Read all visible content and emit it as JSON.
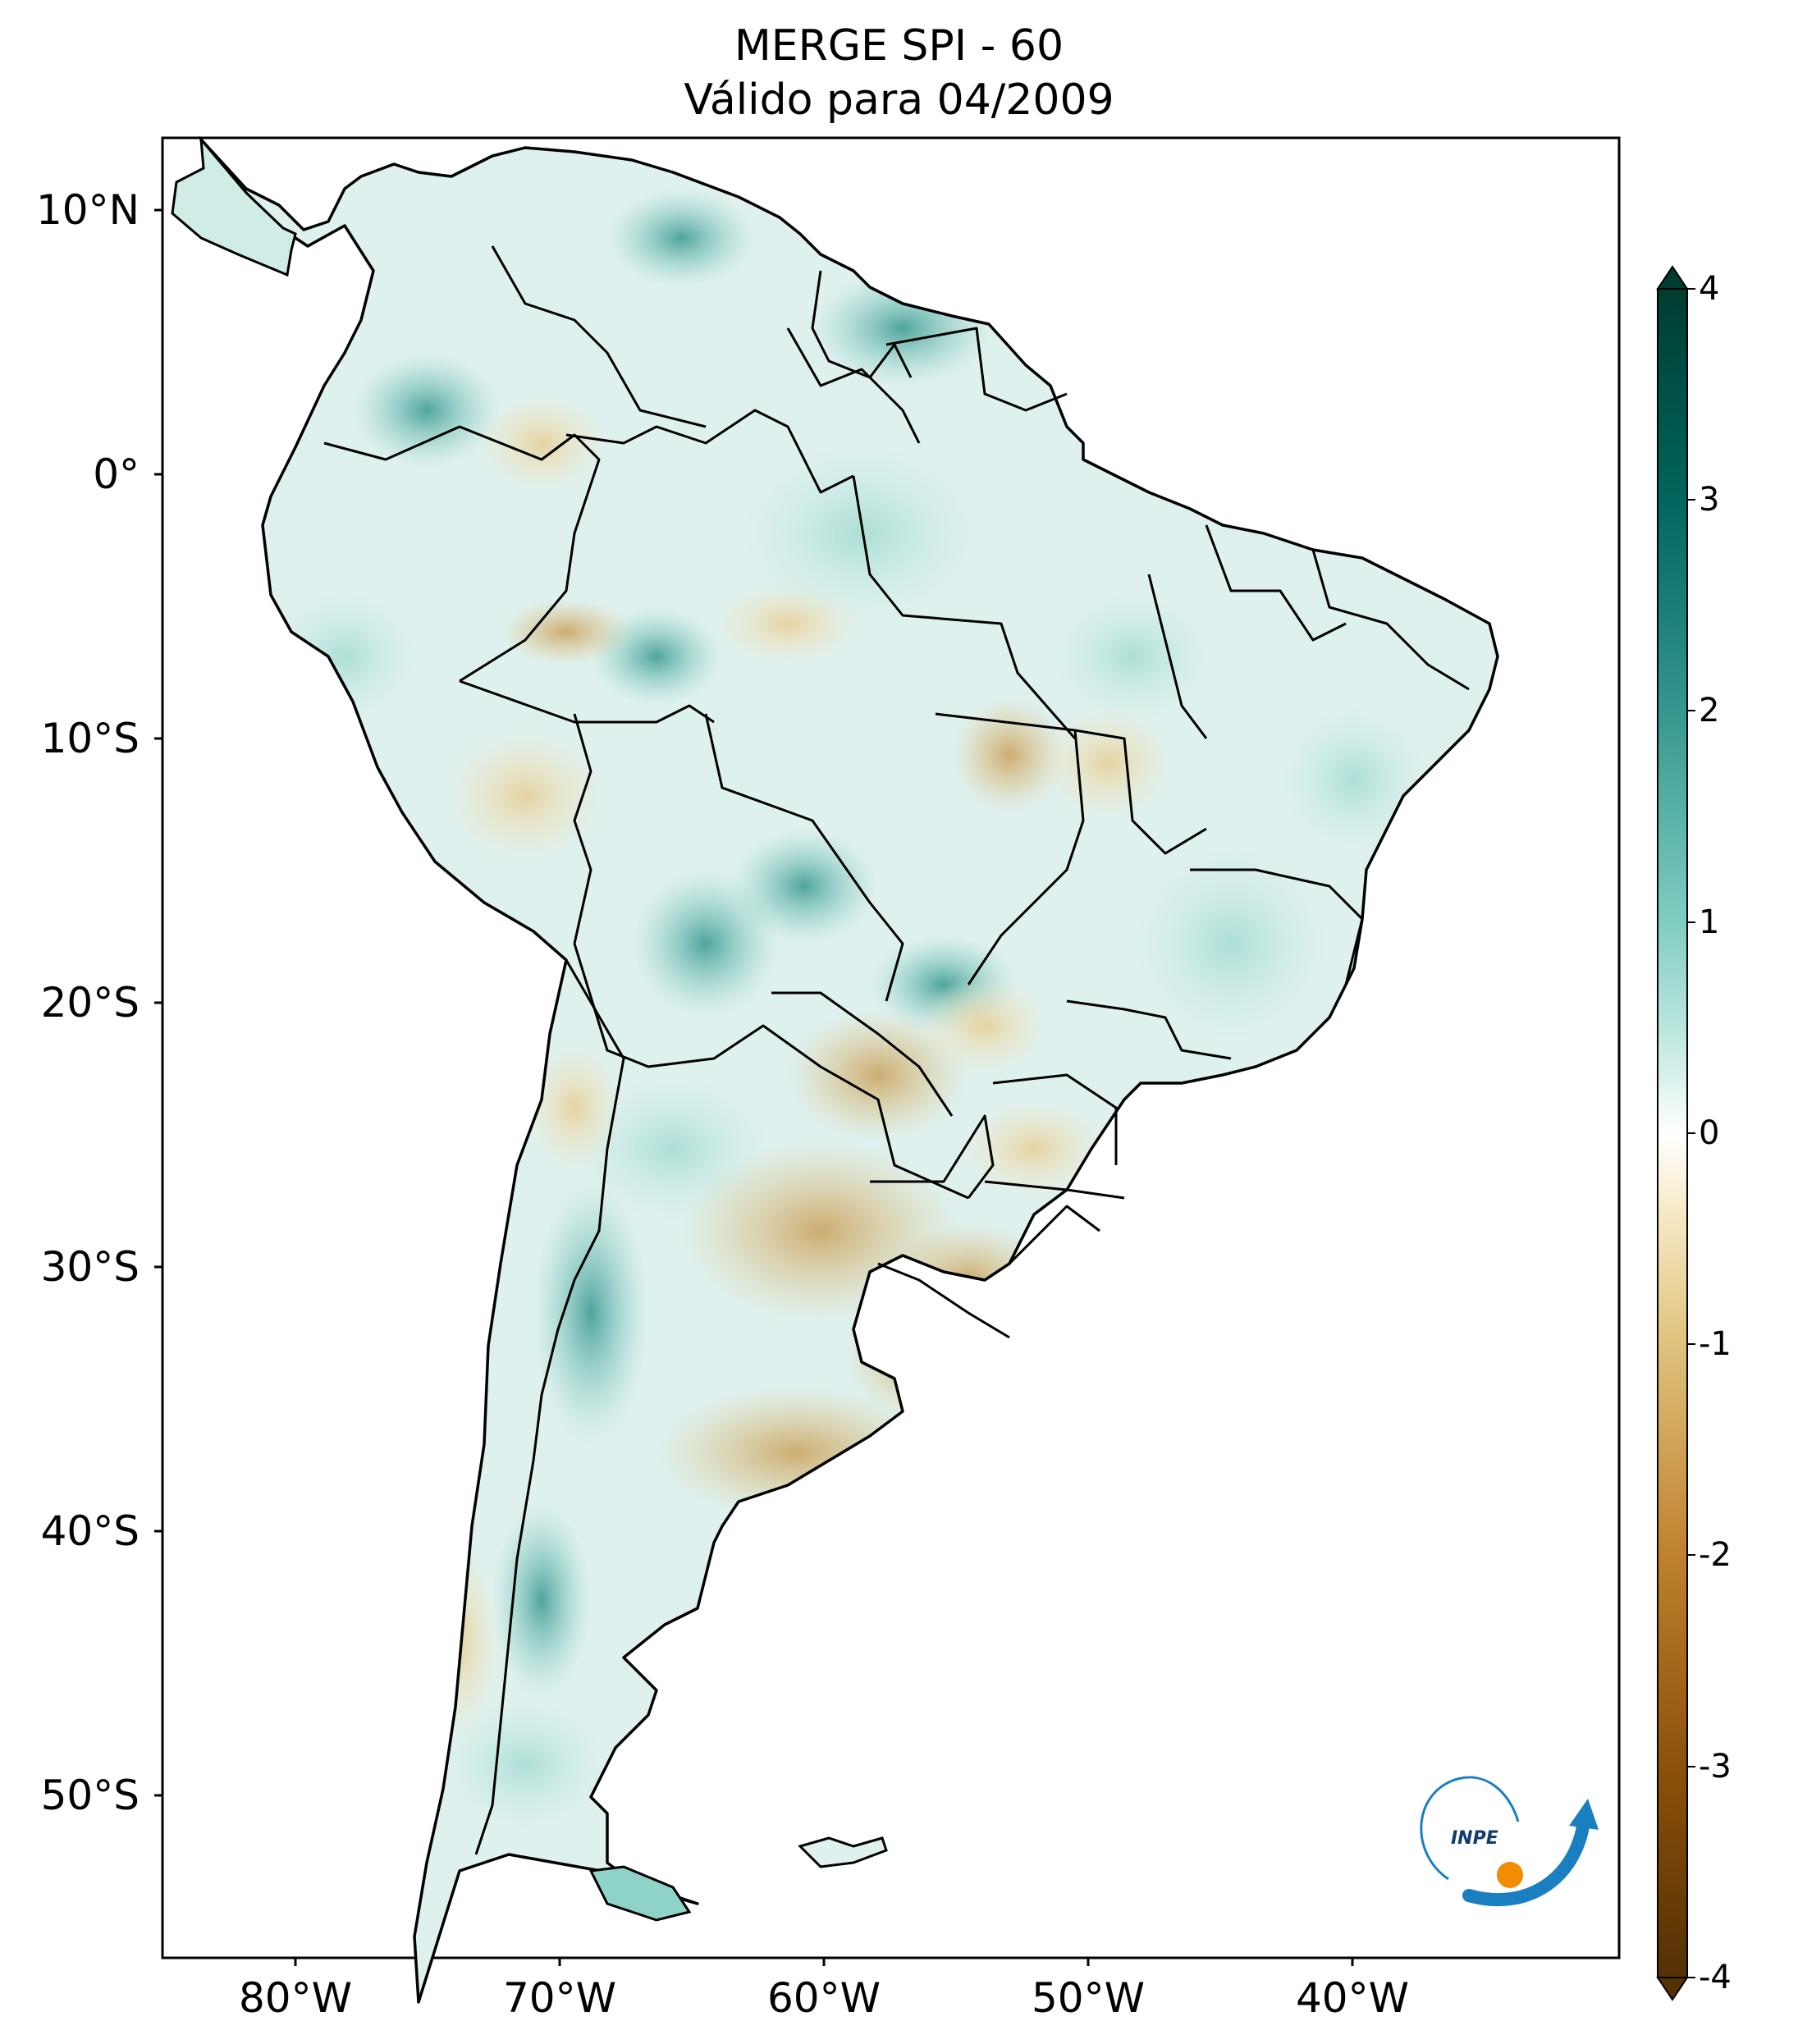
{
  "map": {
    "title_line1": "MERGE   SPI - 60",
    "title_line2": "Válido para 04/2009",
    "lat_ticks": [
      "10°N",
      "0°",
      "10°S",
      "20°S",
      "30°S",
      "40°S",
      "50°S"
    ],
    "lon_ticks": [
      "80°W",
      "70°W",
      "60°W",
      "50°W",
      "40°W"
    ],
    "extent": {
      "lon": [
        -85,
        -30
      ],
      "lat": [
        -56,
        13
      ]
    },
    "logo_text": "INPE"
  },
  "colorbar": {
    "ticks": [
      "4",
      "3",
      "2",
      "1",
      "0",
      "-1",
      "-2",
      "-3",
      "-4"
    ],
    "range": [
      -4,
      4
    ],
    "extend": "both",
    "colormap": "BrBG",
    "colors": [
      "#543005",
      "#8c510a",
      "#bf812d",
      "#dfc27d",
      "#f6e8c3",
      "#ffffff",
      "#c7eae5",
      "#80cdc1",
      "#35978f",
      "#01665e",
      "#003c30"
    ]
  }
}
